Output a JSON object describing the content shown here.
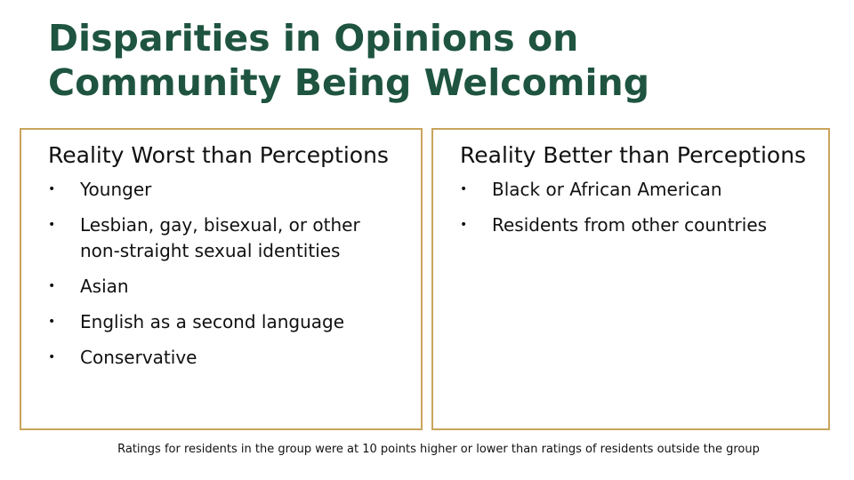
{
  "header": {
    "title": "Disparities in Opinions on Community Being Welcoming"
  },
  "panels": [
    {
      "heading": "Reality Worst than Perceptions",
      "items": [
        "Younger",
        "Lesbian, gay, bisexual, or other non-straight sexual identities",
        "Asian",
        "English as a second language",
        "Conservative"
      ]
    },
    {
      "heading": "Reality Better than Perceptions",
      "items": [
        "Black or African American",
        "Residents from other countries"
      ]
    }
  ],
  "footnote": "Ratings for residents in the group were at 10 points higher or lower than ratings of residents outside the group"
}
